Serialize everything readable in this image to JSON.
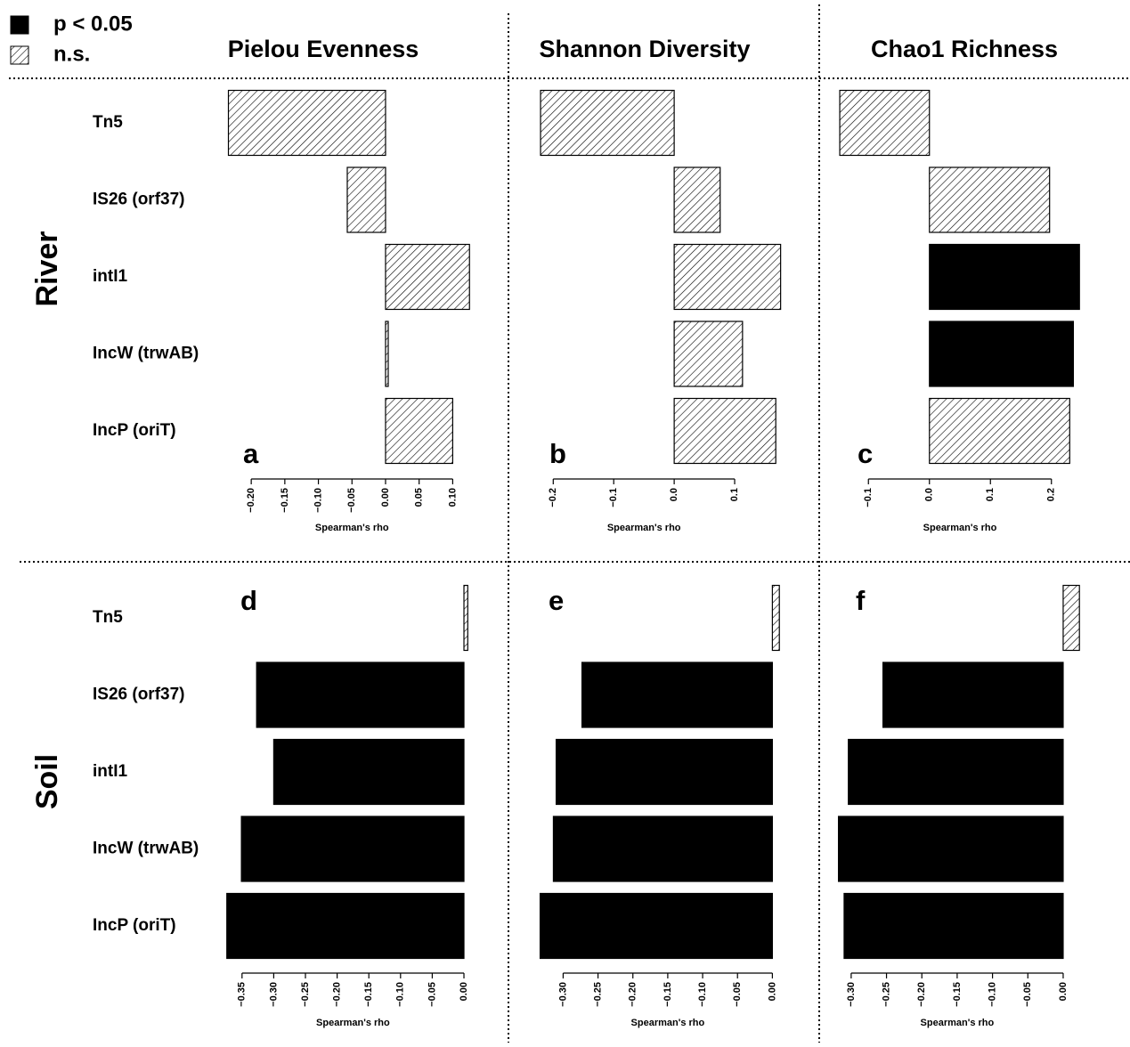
{
  "legend": {
    "items": [
      {
        "label": "p < 0.05",
        "fill": "solid"
      },
      {
        "label": "n.s.",
        "fill": "hatch"
      }
    ]
  },
  "columns": [
    "Pielou Evenness",
    "Shannon Diversity",
    "Chao1 Richness"
  ],
  "rows": [
    "River",
    "Soil"
  ],
  "chart_data": [
    {
      "type": "barh",
      "panel": "a",
      "xlabel": "Spearman's rho",
      "categories": [
        "Tn5",
        "IS26 (orf37)",
        "intI1",
        "IncW (trwAB)",
        "IncP (oriT)"
      ],
      "values": [
        -0.234,
        -0.057,
        0.125,
        0.004,
        0.1
      ],
      "fills": [
        "hatch",
        "hatch",
        "hatch",
        "hatch",
        "hatch"
      ],
      "xlim": [
        -0.236,
        0.126
      ],
      "xticks": [
        {
          "value": -0.2,
          "label": "−0.20"
        },
        {
          "value": -0.15,
          "label": "−0.15"
        },
        {
          "value": -0.1,
          "label": "−0.10"
        },
        {
          "value": -0.05,
          "label": "−0.05"
        },
        {
          "value": 0,
          "label": "0.00"
        },
        {
          "value": 0.05,
          "label": "0.05"
        },
        {
          "value": 0.1,
          "label": "0.10"
        }
      ]
    },
    {
      "type": "barh",
      "panel": "b",
      "xlabel": "Spearman's rho",
      "values": [
        -0.221,
        0.076,
        0.176,
        0.113,
        0.168
      ],
      "fills": [
        "hatch",
        "hatch",
        "hatch",
        "hatch",
        "hatch"
      ],
      "xlim": [
        -0.224,
        0.178
      ],
      "xticks": [
        {
          "value": -0.2,
          "label": "−0.2"
        },
        {
          "value": -0.1,
          "label": "−0.1"
        },
        {
          "value": 0,
          "label": "0.0"
        },
        {
          "value": 0.1,
          "label": "0.1"
        }
      ]
    },
    {
      "type": "barh",
      "panel": "c",
      "xlabel": "Spearman's rho",
      "values": [
        -0.147,
        0.197,
        0.246,
        0.236,
        0.23
      ],
      "fills": [
        "hatch",
        "hatch",
        "solid",
        "solid",
        "hatch"
      ],
      "xlim": [
        -0.15,
        0.25
      ],
      "xticks": [
        {
          "value": -0.1,
          "label": "−0.1"
        },
        {
          "value": 0,
          "label": "0.0"
        },
        {
          "value": 0.1,
          "label": "0.1"
        },
        {
          "value": 0.2,
          "label": "0.2"
        }
      ]
    },
    {
      "type": "barh",
      "panel": "d",
      "xlabel": "Spearman's rho",
      "categories": [
        "Tn5",
        "IS26 (orf37)",
        "intI1",
        "IncW (trwAB)",
        "IncP (oriT)"
      ],
      "values": [
        0.006,
        -0.327,
        -0.3,
        -0.351,
        -0.374
      ],
      "fills": [
        "hatch",
        "solid",
        "solid",
        "solid",
        "solid"
      ],
      "xlim": [
        -0.375,
        0.007
      ],
      "xticks": [
        {
          "value": -0.35,
          "label": "−0.35"
        },
        {
          "value": -0.3,
          "label": "−0.30"
        },
        {
          "value": -0.25,
          "label": "−0.25"
        },
        {
          "value": -0.2,
          "label": "−0.20"
        },
        {
          "value": -0.15,
          "label": "−0.15"
        },
        {
          "value": -0.1,
          "label": "−0.10"
        },
        {
          "value": -0.05,
          "label": "−0.05"
        },
        {
          "value": 0,
          "label": "0.00"
        }
      ]
    },
    {
      "type": "barh",
      "panel": "e",
      "xlabel": "Spearman's rho",
      "values": [
        0.01,
        -0.273,
        -0.31,
        -0.314,
        -0.333
      ],
      "fills": [
        "hatch",
        "solid",
        "solid",
        "solid",
        "solid"
      ],
      "xlim": [
        -0.335,
        0.011
      ],
      "xticks": [
        {
          "value": -0.3,
          "label": "−0.30"
        },
        {
          "value": -0.25,
          "label": "−0.25"
        },
        {
          "value": -0.2,
          "label": "−0.20"
        },
        {
          "value": -0.15,
          "label": "−0.15"
        },
        {
          "value": -0.1,
          "label": "−0.10"
        },
        {
          "value": -0.05,
          "label": "−0.05"
        },
        {
          "value": 0,
          "label": "0.00"
        }
      ]
    },
    {
      "type": "barh",
      "panel": "f",
      "xlabel": "Spearman's rho",
      "values": [
        0.023,
        -0.255,
        -0.304,
        -0.318,
        -0.31
      ],
      "fills": [
        "hatch",
        "solid",
        "solid",
        "solid",
        "solid"
      ],
      "xlim": [
        -0.32,
        0.024
      ],
      "xticks": [
        {
          "value": -0.3,
          "label": "−0.30"
        },
        {
          "value": -0.25,
          "label": "−0.25"
        },
        {
          "value": -0.2,
          "label": "−0.20"
        },
        {
          "value": -0.15,
          "label": "−0.15"
        },
        {
          "value": -0.1,
          "label": "−0.10"
        },
        {
          "value": -0.05,
          "label": "−0.05"
        },
        {
          "value": 0,
          "label": "0.00"
        }
      ]
    }
  ]
}
